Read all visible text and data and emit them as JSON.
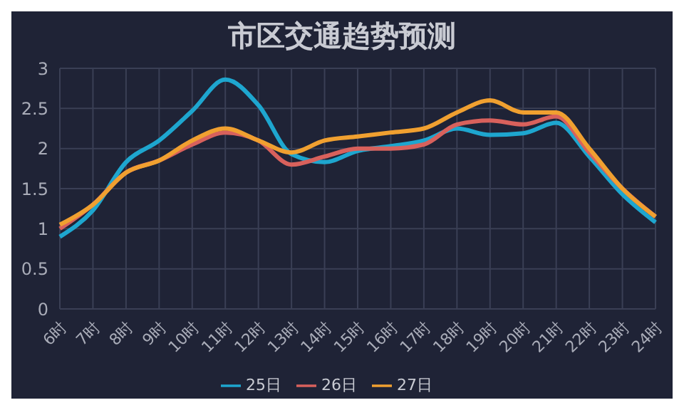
{
  "chart_data": {
    "type": "line",
    "title": "市区交通趋势预测",
    "categories": [
      "6时",
      "7时",
      "8时",
      "9时",
      "10时",
      "11时",
      "12时",
      "13时",
      "14时",
      "15时",
      "16时",
      "17时",
      "18时",
      "19时",
      "20时",
      "21时",
      "22时",
      "23时",
      "24时"
    ],
    "series": [
      {
        "name": "25日",
        "color": "#1ea6cf",
        "values": [
          0.9,
          1.23,
          1.83,
          2.1,
          2.47,
          2.86,
          2.54,
          1.93,
          1.83,
          1.97,
          2.03,
          2.1,
          2.25,
          2.17,
          2.19,
          2.32,
          1.9,
          1.43,
          1.08
        ]
      },
      {
        "name": "26日",
        "color": "#d8615c",
        "values": [
          1.0,
          1.3,
          1.7,
          1.85,
          2.05,
          2.2,
          2.1,
          1.8,
          1.9,
          2.0,
          2.0,
          2.05,
          2.3,
          2.35,
          2.3,
          2.4,
          1.95,
          1.5,
          1.15
        ]
      },
      {
        "name": "27日",
        "color": "#f0a030",
        "values": [
          1.05,
          1.3,
          1.7,
          1.85,
          2.1,
          2.25,
          2.1,
          1.95,
          2.1,
          2.15,
          2.2,
          2.25,
          2.45,
          2.6,
          2.45,
          2.45,
          2.0,
          1.5,
          1.15
        ]
      }
    ],
    "ylim": [
      0,
      3
    ],
    "yticks": [
      0,
      0.5,
      1,
      1.5,
      2,
      2.5,
      3
    ],
    "grid": true,
    "legend": "bottom",
    "marker": "none",
    "line_style": "solid"
  }
}
